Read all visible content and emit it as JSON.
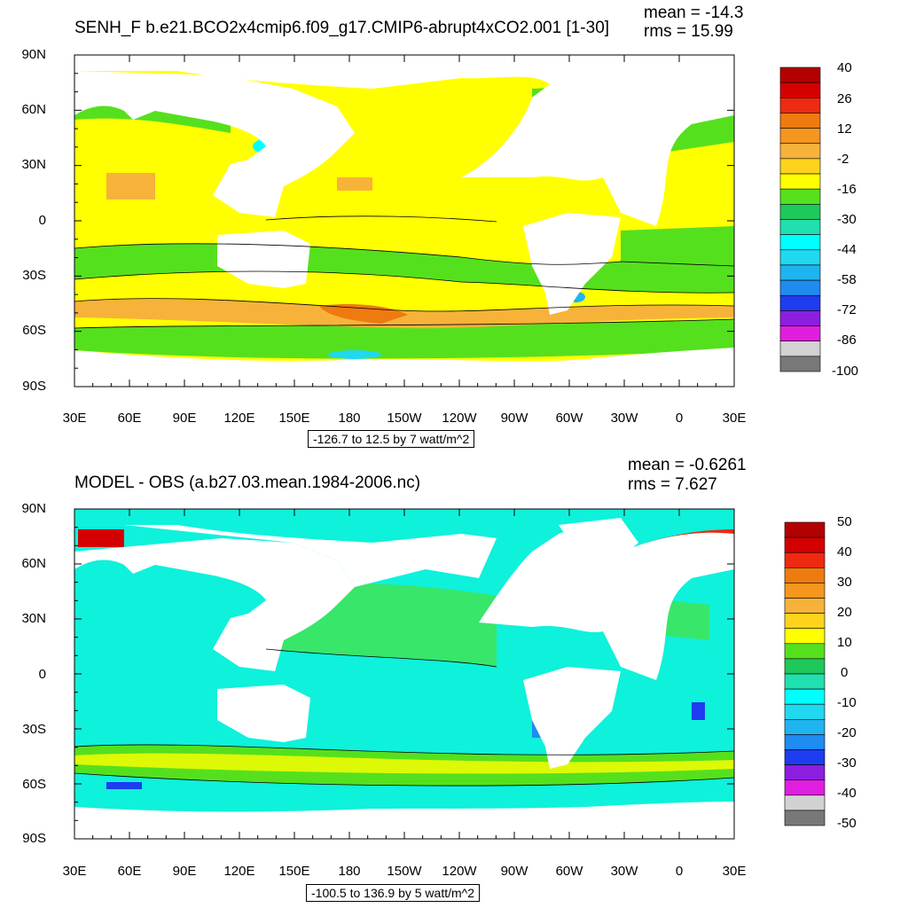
{
  "panels": [
    {
      "title": "SENH_F b.e21.BCO2x4cmip6.f09_g17.CMIP6-abrupt4xCO2.001 [1-30]",
      "mean": "mean = -14.3",
      "rms": "rms = 15.99",
      "range_text": "-126.7 to 12.5 by 7 watt/m^2",
      "colorbar": {
        "labels": [
          "40",
          "26",
          "12",
          "-2",
          "-16",
          "-30",
          "-44",
          "-58",
          "-72",
          "-86",
          "-100"
        ],
        "colors": [
          "#b30000",
          "#d40000",
          "#ee2a10",
          "#ee7a10",
          "#f5961e",
          "#f7b23a",
          "#ffd21e",
          "#ffff00",
          "#55e01e",
          "#1ec85a",
          "#20e0b0",
          "#00ffff",
          "#20d8f0",
          "#1eb4f0",
          "#1e8cf0",
          "#1e3cf0",
          "#8c1ee0",
          "#e01ee0",
          "#d2d2d2",
          "#787878"
        ]
      }
    },
    {
      "title": "MODEL - OBS (a.b27.03.mean.1984-2006.nc)",
      "mean": "mean = -0.6261",
      "rms": "rms = 7.627",
      "range_text": "-100.5 to 136.9 by 5 watt/m^2",
      "colorbar": {
        "labels": [
          "50",
          "40",
          "30",
          "20",
          "10",
          "0",
          "-10",
          "-20",
          "-30",
          "-40",
          "-50"
        ],
        "colors": [
          "#b30000",
          "#d40000",
          "#ee2a10",
          "#ee7a10",
          "#f5961e",
          "#f7b23a",
          "#ffd21e",
          "#ffff00",
          "#55e01e",
          "#1ec85a",
          "#20e0b0",
          "#00ffff",
          "#20d8f0",
          "#1eb4f0",
          "#1e8cf0",
          "#1e3cf0",
          "#8c1ee0",
          "#e01ee0",
          "#d2d2d2",
          "#787878"
        ]
      }
    }
  ],
  "lat_labels": [
    "90N",
    "60N",
    "30N",
    "0",
    "30S",
    "60S",
    "90S"
  ],
  "lon_labels": [
    "30E",
    "60E",
    "90E",
    "120E",
    "150E",
    "180",
    "150W",
    "120W",
    "90W",
    "60W",
    "30W",
    "0",
    "30E"
  ]
}
